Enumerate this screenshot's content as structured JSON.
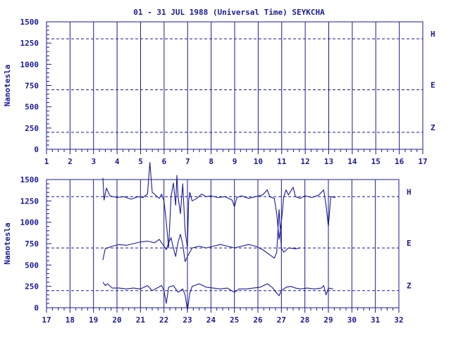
{
  "title": "01 - 31 JUL 1988 (Universal Time) SEYKCHA",
  "colors": {
    "ink": "#1a1a9c",
    "background": "#ffffff"
  },
  "chart_data": [
    {
      "type": "line",
      "panel": "upper",
      "ylabel": "Nanotesla",
      "ylim": [
        0,
        1500
      ],
      "y_ticks": [
        0,
        250,
        500,
        750,
        1000,
        1250,
        1500
      ],
      "xlim": [
        1,
        17
      ],
      "x_ticks": [
        1,
        2,
        3,
        4,
        5,
        6,
        7,
        8,
        9,
        10,
        11,
        12,
        13,
        14,
        15,
        16,
        17
      ],
      "baselines": [
        {
          "label": "H",
          "value": 1300
        },
        {
          "label": "E",
          "value": 700
        },
        {
          "label": "Z",
          "value": 200
        }
      ],
      "series": []
    },
    {
      "type": "line",
      "panel": "lower",
      "ylabel": "Nanotesla",
      "ylim": [
        0,
        1500
      ],
      "y_ticks": [
        0,
        250,
        500,
        750,
        1000,
        1250,
        1500
      ],
      "xlim": [
        17,
        32
      ],
      "x_ticks": [
        17,
        18,
        19,
        20,
        21,
        22,
        23,
        24,
        25,
        26,
        27,
        28,
        29,
        30,
        31,
        32
      ],
      "baselines": [
        {
          "label": "H",
          "value": 1300
        },
        {
          "label": "E",
          "value": 700
        },
        {
          "label": "Z",
          "value": 200
        }
      ],
      "series": [
        {
          "component": "H",
          "points": [
            [
              19.4,
              1520
            ],
            [
              19.45,
              1260
            ],
            [
              19.55,
              1400
            ],
            [
              19.7,
              1310
            ],
            [
              20,
              1290
            ],
            [
              20.3,
              1300
            ],
            [
              20.6,
              1270
            ],
            [
              20.9,
              1300
            ],
            [
              21.1,
              1290
            ],
            [
              21.3,
              1330
            ],
            [
              21.4,
              1700
            ],
            [
              21.5,
              1350
            ],
            [
              21.6,
              1330
            ],
            [
              21.7,
              1300
            ],
            [
              21.8,
              1280
            ],
            [
              21.9,
              1330
            ],
            [
              22.0,
              1250
            ],
            [
              22.1,
              1000
            ],
            [
              22.2,
              700
            ],
            [
              22.3,
              1300
            ],
            [
              22.4,
              1460
            ],
            [
              22.5,
              1200
            ],
            [
              22.55,
              1550
            ],
            [
              22.6,
              1300
            ],
            [
              22.7,
              1100
            ],
            [
              22.8,
              1450
            ],
            [
              22.9,
              900
            ],
            [
              23.0,
              700
            ],
            [
              23.05,
              1250
            ],
            [
              23.1,
              1350
            ],
            [
              23.2,
              1250
            ],
            [
              23.4,
              1280
            ],
            [
              23.6,
              1330
            ],
            [
              23.8,
              1300
            ],
            [
              24.0,
              1310
            ],
            [
              24.3,
              1290
            ],
            [
              24.6,
              1300
            ],
            [
              24.9,
              1260
            ],
            [
              25.0,
              1180
            ],
            [
              25.1,
              1290
            ],
            [
              25.3,
              1310
            ],
            [
              25.6,
              1280
            ],
            [
              25.9,
              1300
            ],
            [
              26.2,
              1320
            ],
            [
              26.4,
              1380
            ],
            [
              26.5,
              1300
            ],
            [
              26.7,
              1280
            ],
            [
              26.8,
              1100
            ],
            [
              26.9,
              800
            ],
            [
              27.0,
              1000
            ],
            [
              27.1,
              1300
            ],
            [
              27.2,
              1380
            ],
            [
              27.3,
              1320
            ],
            [
              27.5,
              1410
            ],
            [
              27.6,
              1300
            ],
            [
              27.8,
              1280
            ],
            [
              28.0,
              1310
            ],
            [
              28.3,
              1290
            ],
            [
              28.6,
              1320
            ],
            [
              28.8,
              1380
            ],
            [
              28.9,
              1200
            ],
            [
              29.0,
              950
            ],
            [
              29.1,
              1300
            ],
            [
              29.3,
              1290
            ]
          ]
        },
        {
          "component": "E",
          "points": [
            [
              19.4,
              560
            ],
            [
              19.5,
              690
            ],
            [
              19.8,
              720
            ],
            [
              20.1,
              740
            ],
            [
              20.4,
              730
            ],
            [
              20.7,
              750
            ],
            [
              21.0,
              770
            ],
            [
              21.3,
              780
            ],
            [
              21.6,
              760
            ],
            [
              21.8,
              800
            ],
            [
              22.0,
              720
            ],
            [
              22.1,
              680
            ],
            [
              22.2,
              760
            ],
            [
              22.3,
              820
            ],
            [
              22.4,
              700
            ],
            [
              22.5,
              600
            ],
            [
              22.6,
              770
            ],
            [
              22.7,
              860
            ],
            [
              22.8,
              740
            ],
            [
              22.9,
              540
            ],
            [
              23.0,
              600
            ],
            [
              23.2,
              700
            ],
            [
              23.5,
              720
            ],
            [
              23.8,
              700
            ],
            [
              24.1,
              720
            ],
            [
              24.4,
              740
            ],
            [
              24.7,
              720
            ],
            [
              25.0,
              700
            ],
            [
              25.3,
              720
            ],
            [
              25.6,
              740
            ],
            [
              25.9,
              720
            ],
            [
              26.2,
              680
            ],
            [
              26.5,
              620
            ],
            [
              26.7,
              580
            ],
            [
              26.8,
              650
            ],
            [
              26.9,
              1150
            ],
            [
              27.0,
              700
            ],
            [
              27.1,
              650
            ],
            [
              27.3,
              700
            ],
            [
              27.6,
              690
            ],
            [
              27.8,
              700
            ]
          ]
        },
        {
          "component": "Z",
          "points": [
            [
              19.4,
              300
            ],
            [
              19.5,
              260
            ],
            [
              19.6,
              280
            ],
            [
              19.8,
              230
            ],
            [
              20.1,
              230
            ],
            [
              20.4,
              220
            ],
            [
              20.7,
              230
            ],
            [
              21.0,
              220
            ],
            [
              21.3,
              260
            ],
            [
              21.5,
              200
            ],
            [
              21.7,
              230
            ],
            [
              21.9,
              260
            ],
            [
              22.0,
              200
            ],
            [
              22.1,
              50
            ],
            [
              22.2,
              240
            ],
            [
              22.4,
              260
            ],
            [
              22.6,
              180
            ],
            [
              22.8,
              220
            ],
            [
              22.9,
              150
            ],
            [
              23.0,
              -30
            ],
            [
              23.1,
              170
            ],
            [
              23.2,
              250
            ],
            [
              23.5,
              280
            ],
            [
              23.8,
              240
            ],
            [
              24.1,
              230
            ],
            [
              24.4,
              220
            ],
            [
              24.7,
              230
            ],
            [
              25.0,
              180
            ],
            [
              25.2,
              220
            ],
            [
              25.5,
              220
            ],
            [
              25.8,
              230
            ],
            [
              26.1,
              240
            ],
            [
              26.4,
              280
            ],
            [
              26.6,
              240
            ],
            [
              26.8,
              170
            ],
            [
              26.9,
              140
            ],
            [
              27.0,
              200
            ],
            [
              27.2,
              240
            ],
            [
              27.4,
              250
            ],
            [
              27.6,
              230
            ],
            [
              27.8,
              220
            ],
            [
              28.1,
              230
            ],
            [
              28.4,
              220
            ],
            [
              28.7,
              230
            ],
            [
              28.8,
              260
            ],
            [
              28.9,
              150
            ],
            [
              29.0,
              230
            ],
            [
              29.2,
              220
            ]
          ]
        }
      ]
    }
  ]
}
